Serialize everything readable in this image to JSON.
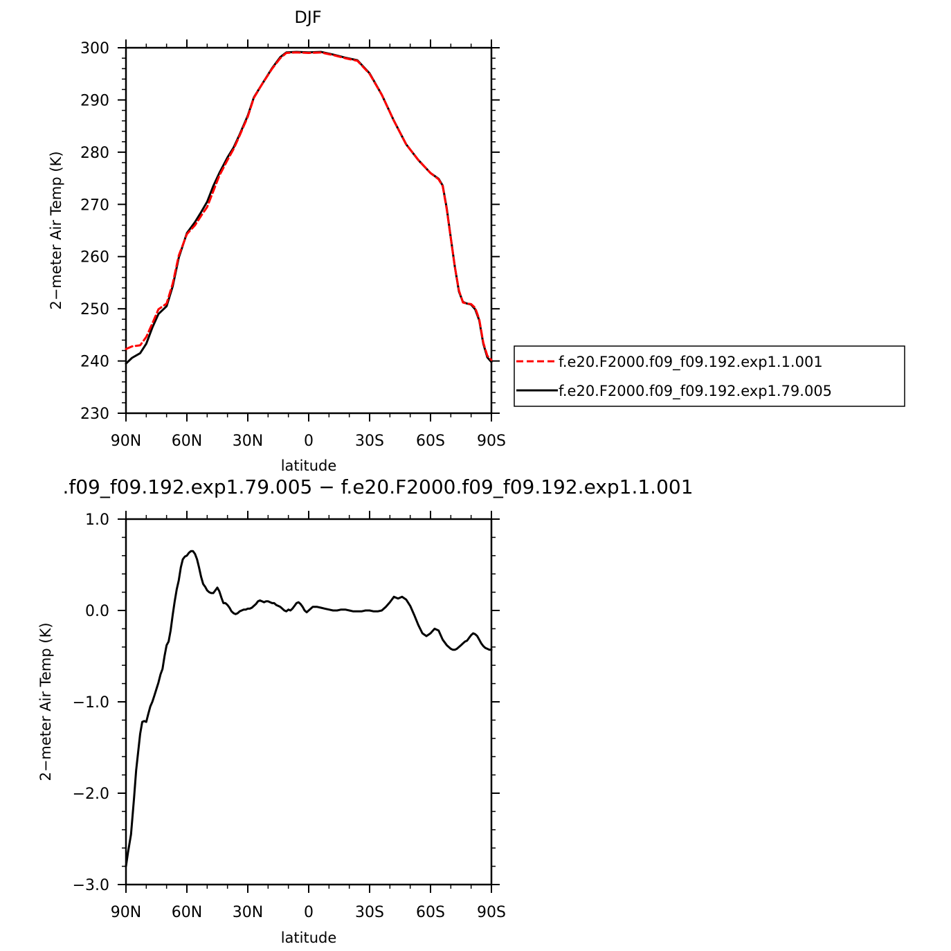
{
  "chart_data": [
    {
      "type": "line",
      "title": "DJF",
      "xlabel": "latitude",
      "ylabel": "2−meter Air Temp (K)",
      "ylim": [
        230,
        300
      ],
      "xlim": [
        90,
        -90
      ],
      "x_ticks": [
        {
          "value": 90,
          "label": "90N"
        },
        {
          "value": 60,
          "label": "60N"
        },
        {
          "value": 30,
          "label": "30N"
        },
        {
          "value": 0,
          "label": "0"
        },
        {
          "value": -30,
          "label": "30S"
        },
        {
          "value": -60,
          "label": "60S"
        },
        {
          "value": -90,
          "label": "90S"
        }
      ],
      "y_ticks": [
        {
          "value": 230,
          "label": "230"
        },
        {
          "value": 240,
          "label": "240"
        },
        {
          "value": 250,
          "label": "250"
        },
        {
          "value": 260,
          "label": "260"
        },
        {
          "value": 270,
          "label": "270"
        },
        {
          "value": 280,
          "label": "280"
        },
        {
          "value": 290,
          "label": "290"
        },
        {
          "value": 300,
          "label": "300"
        }
      ],
      "legend_position": "right",
      "series": [
        {
          "name": "f.e20.F2000.f09_f09.192.exp1.1.001",
          "color": "#ff0000",
          "dash": "dashed",
          "x": [
            90,
            87,
            83,
            80,
            77,
            74,
            70,
            67,
            64,
            60,
            56,
            53,
            50,
            47,
            44,
            40,
            37,
            34,
            30,
            27,
            23,
            18,
            14,
            11,
            6,
            0,
            -6,
            -12,
            -18,
            -24,
            -30,
            -36,
            -42,
            -48,
            -54,
            -60,
            -64,
            -66,
            -68,
            -70,
            -72,
            -74,
            -76,
            -78,
            -80,
            -82,
            -84,
            -86,
            -88,
            -90
          ],
          "y": [
            242.3,
            242.8,
            243.0,
            244.6,
            247.2,
            249.9,
            251.0,
            254.8,
            260.2,
            264.3,
            266.0,
            267.8,
            269.5,
            272.5,
            275.5,
            278.5,
            280.6,
            283.2,
            286.8,
            290.4,
            293.0,
            296.0,
            298.0,
            299.0,
            299.1,
            299.0,
            299.1,
            298.6,
            298.0,
            297.5,
            295.0,
            291.0,
            286.0,
            281.5,
            278.5,
            276.0,
            274.8,
            273.5,
            269.0,
            263.5,
            258.0,
            253.5,
            251.2,
            251.0,
            250.9,
            250.2,
            248.0,
            243.5,
            241.0,
            240.2
          ]
        },
        {
          "name": "f.e20.F2000.f09_f09.192.exp1.79.005",
          "color": "#000000",
          "dash": "solid",
          "x": [
            90,
            87,
            83,
            80,
            77,
            74,
            70,
            67,
            64,
            60,
            56,
            53,
            50,
            47,
            44,
            40,
            37,
            34,
            30,
            27,
            23,
            18,
            14,
            11,
            6,
            0,
            -6,
            -12,
            -18,
            -24,
            -30,
            -36,
            -42,
            -48,
            -54,
            -60,
            -64,
            -66,
            -68,
            -70,
            -72,
            -74,
            -76,
            -78,
            -80,
            -82,
            -84,
            -86,
            -88,
            -90
          ],
          "y": [
            239.5,
            240.6,
            241.5,
            243.3,
            246.4,
            249.0,
            250.5,
            254.3,
            259.8,
            264.5,
            266.6,
            268.5,
            270.5,
            273.5,
            276.0,
            279.0,
            280.9,
            283.4,
            287.0,
            290.5,
            293.0,
            296.1,
            298.2,
            299.1,
            299.2,
            299.1,
            299.2,
            298.7,
            298.1,
            297.6,
            295.1,
            291.0,
            286.0,
            281.5,
            278.5,
            276.0,
            274.9,
            273.6,
            269.2,
            263.6,
            258.0,
            253.3,
            251.3,
            251.0,
            250.8,
            249.9,
            247.8,
            243.3,
            240.7,
            239.8
          ]
        }
      ]
    },
    {
      "type": "line",
      "title": ".f09_f09.192.exp1.79.005 − f.e20.F2000.f09_f09.192.exp1.1.001",
      "xlabel": "latitude",
      "ylabel": "2−meter Air Temp (K)",
      "ylim": [
        -3.0,
        1.0
      ],
      "xlim": [
        90,
        -90
      ],
      "x_ticks": [
        {
          "value": 90,
          "label": "90N"
        },
        {
          "value": 60,
          "label": "60N"
        },
        {
          "value": 30,
          "label": "30N"
        },
        {
          "value": 0,
          "label": "0"
        },
        {
          "value": -30,
          "label": "30S"
        },
        {
          "value": -60,
          "label": "60S"
        },
        {
          "value": -90,
          "label": "90S"
        }
      ],
      "y_ticks": [
        {
          "value": 1.0,
          "label": "1.0"
        },
        {
          "value": 0.0,
          "label": "0.0"
        },
        {
          "value": -1.0,
          "label": "−1.0"
        },
        {
          "value": -2.0,
          "label": "−2.0"
        },
        {
          "value": -3.0,
          "label": "−3.0"
        }
      ],
      "series": [
        {
          "color": "#000000",
          "dash": "solid",
          "x": [
            90,
            89,
            87.5,
            86,
            85,
            84,
            83,
            82,
            81,
            80,
            79,
            78,
            77,
            76,
            75,
            74,
            73,
            72,
            71,
            70,
            69,
            68,
            67,
            66,
            65,
            64,
            63,
            62,
            61,
            60,
            59,
            58,
            57,
            56,
            55,
            54,
            53,
            52,
            51,
            50,
            49,
            48,
            47,
            46,
            45,
            44,
            43,
            42,
            41,
            40,
            39,
            38,
            37,
            36,
            35,
            34,
            33,
            32,
            31,
            30,
            29,
            28,
            27,
            26,
            25,
            24,
            23,
            22,
            21,
            20,
            19,
            18,
            17,
            16,
            15,
            14,
            13,
            12,
            11,
            10,
            9,
            8,
            7,
            6,
            5,
            4,
            3,
            2,
            1,
            0,
            -2,
            -4,
            -6,
            -8,
            -10,
            -12,
            -14,
            -16,
            -18,
            -20,
            -22,
            -24,
            -26,
            -28,
            -30,
            -32,
            -34,
            -36,
            -38,
            -40,
            -42,
            -44,
            -46,
            -48,
            -50,
            -52,
            -54,
            -56,
            -58,
            -60,
            -62,
            -64,
            -66,
            -68,
            -70,
            -71,
            -72,
            -73,
            -74,
            -75,
            -76,
            -77,
            -78,
            -79,
            -80,
            -81,
            -82,
            -83,
            -84,
            -85,
            -86,
            -87,
            -88,
            -89,
            -90
          ],
          "y": [
            -2.8,
            -2.65,
            -2.45,
            -2.05,
            -1.75,
            -1.55,
            -1.35,
            -1.22,
            -1.21,
            -1.22,
            -1.13,
            -1.05,
            -1.0,
            -0.93,
            -0.86,
            -0.79,
            -0.7,
            -0.64,
            -0.5,
            -0.38,
            -0.34,
            -0.22,
            -0.05,
            0.1,
            0.23,
            0.33,
            0.47,
            0.56,
            0.59,
            0.6,
            0.63,
            0.65,
            0.65,
            0.62,
            0.56,
            0.47,
            0.37,
            0.29,
            0.26,
            0.22,
            0.2,
            0.19,
            0.19,
            0.22,
            0.25,
            0.21,
            0.14,
            0.08,
            0.08,
            0.06,
            0.03,
            -0.01,
            -0.03,
            -0.04,
            -0.03,
            -0.01,
            0.0,
            0.01,
            0.01,
            0.02,
            0.02,
            0.03,
            0.05,
            0.07,
            0.1,
            0.11,
            0.1,
            0.09,
            0.1,
            0.1,
            0.09,
            0.08,
            0.08,
            0.06,
            0.05,
            0.04,
            0.02,
            0.0,
            -0.01,
            0.01,
            0.0,
            0.02,
            0.05,
            0.08,
            0.09,
            0.07,
            0.04,
            0.0,
            -0.02,
            0.0,
            0.04,
            0.04,
            0.03,
            0.02,
            0.01,
            0.0,
            0.0,
            0.01,
            0.01,
            0.0,
            -0.01,
            -0.01,
            -0.01,
            0.0,
            0.0,
            -0.01,
            -0.01,
            0.0,
            0.04,
            0.09,
            0.15,
            0.13,
            0.15,
            0.12,
            0.05,
            -0.05,
            -0.16,
            -0.25,
            -0.28,
            -0.25,
            -0.2,
            -0.22,
            -0.32,
            -0.38,
            -0.42,
            -0.43,
            -0.43,
            -0.42,
            -0.4,
            -0.38,
            -0.36,
            -0.34,
            -0.33,
            -0.3,
            -0.27,
            -0.25,
            -0.26,
            -0.28,
            -0.32,
            -0.36,
            -0.39,
            -0.41,
            -0.42,
            -0.43,
            -0.43
          ]
        }
      ]
    }
  ]
}
